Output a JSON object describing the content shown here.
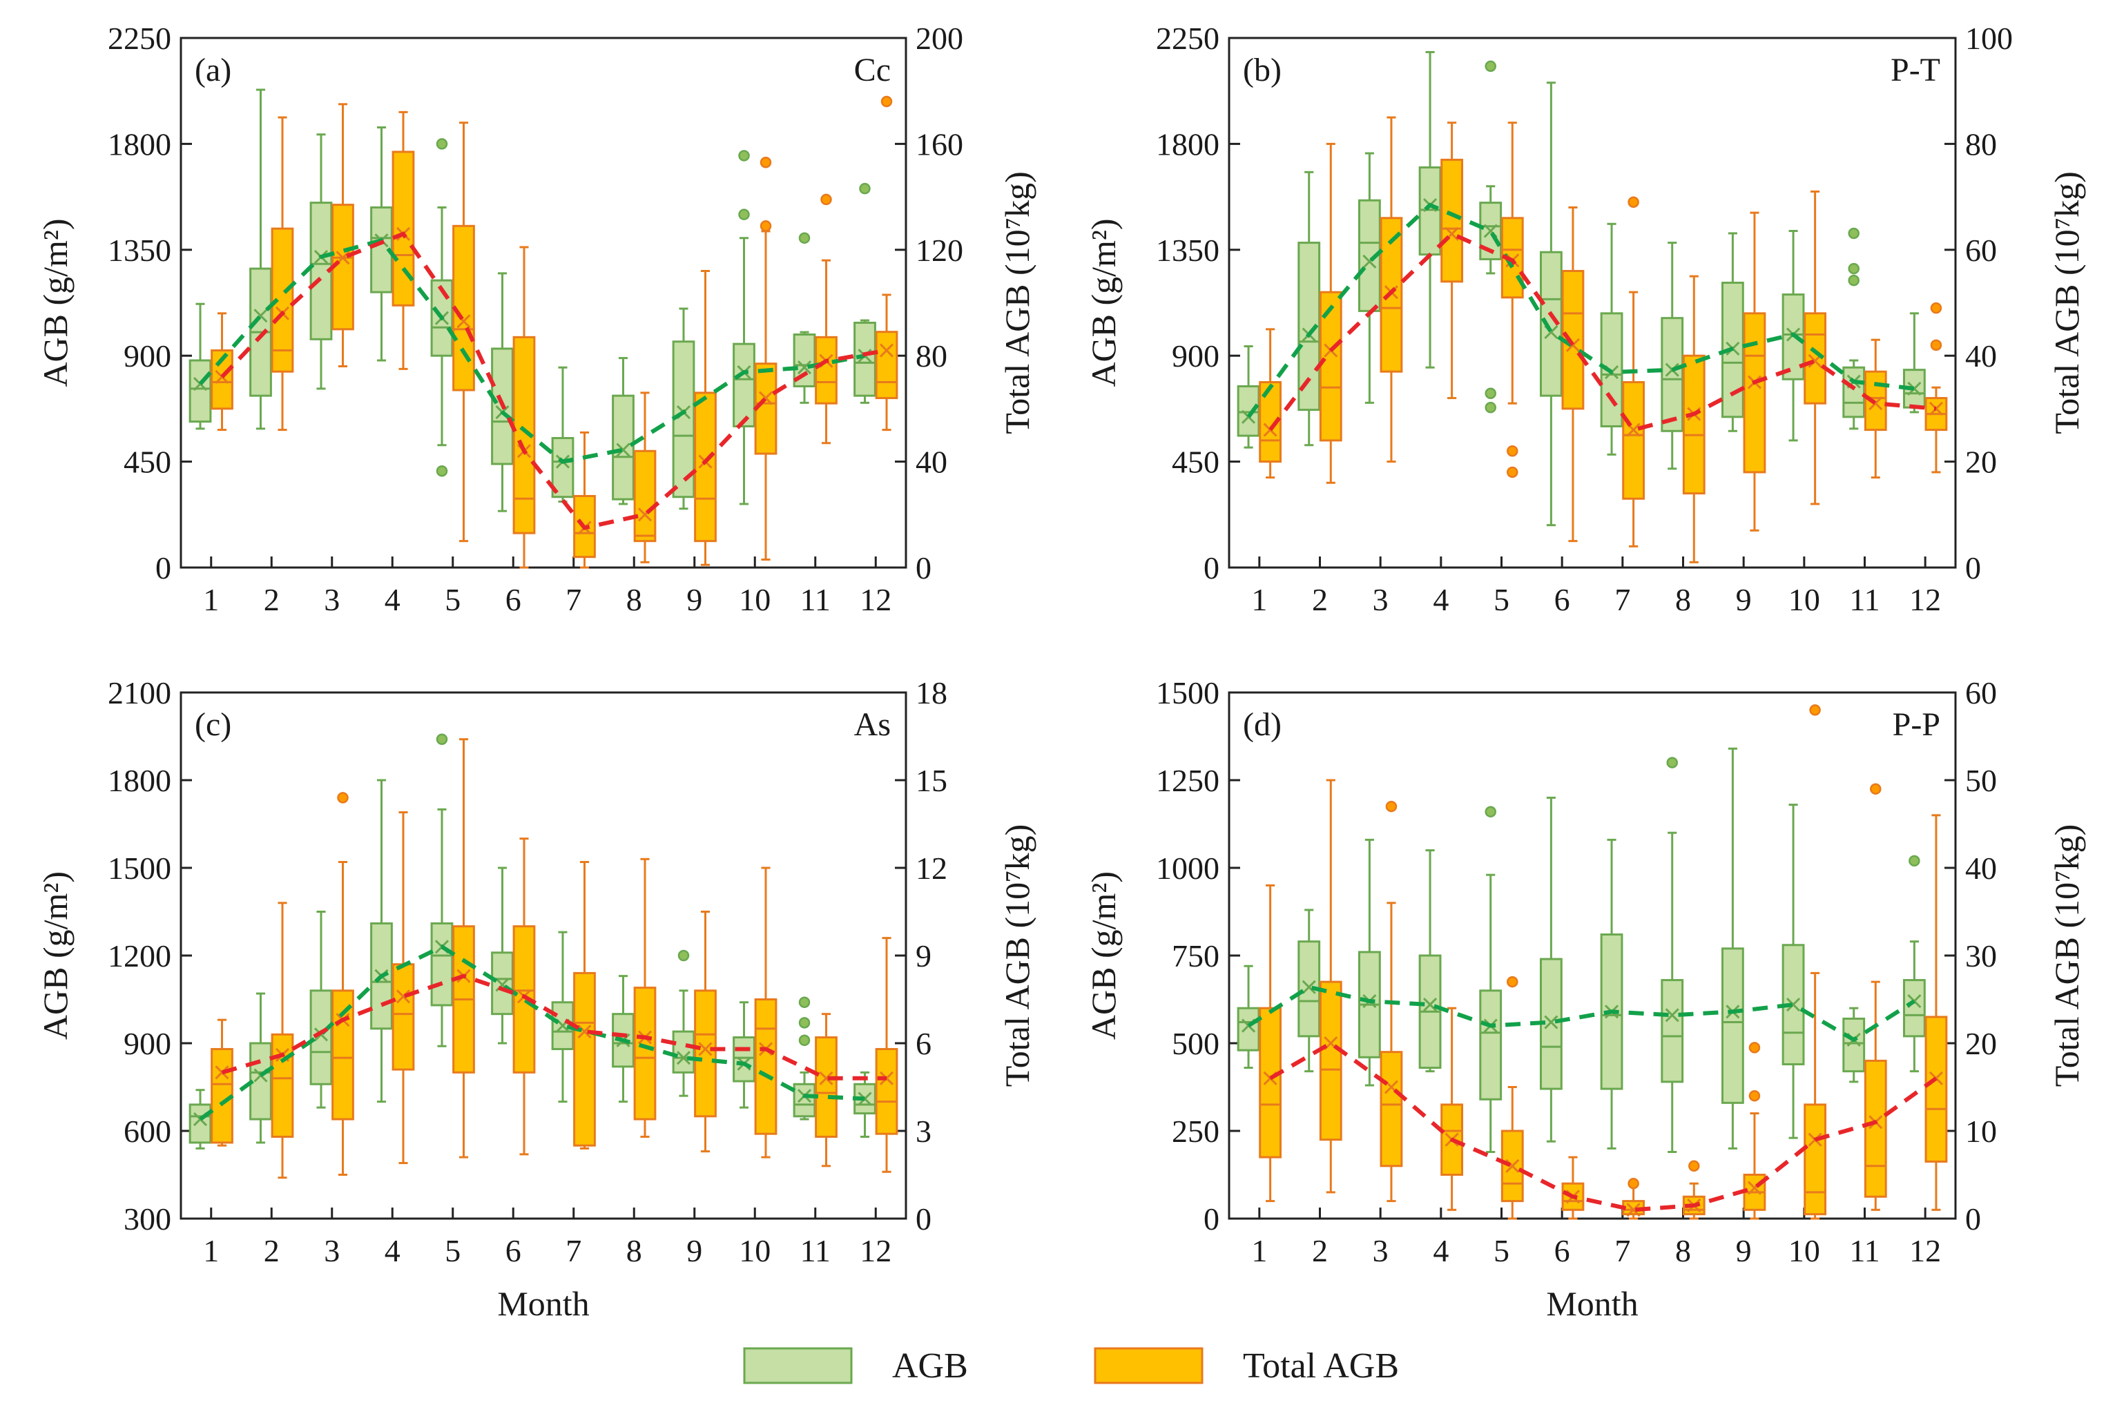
{
  "colors": {
    "agb_fill": "#c5dfa5",
    "agb_edge": "#6aa84f",
    "agb_trend": "#12a14a",
    "total_fill": "#ffc000",
    "total_edge": "#e87a1c",
    "total_trend": "#e8262a",
    "outlier_agb": "#8fbf5a",
    "outlier_total": "#ff9900"
  },
  "legend": {
    "agb_label": "AGB",
    "total_label": "Total AGB"
  },
  "chart_data": [
    {
      "type": "box",
      "panel_label": "(a)",
      "site": "Cc",
      "categories": [
        "1",
        "2",
        "3",
        "4",
        "5",
        "6",
        "7",
        "8",
        "9",
        "10",
        "11",
        "12"
      ],
      "xlabel": "",
      "ylabel_left": "AGB (g/m²)",
      "ylabel_right": "Total AGB (10⁷kg)",
      "ylim_left": [
        0,
        2250
      ],
      "yticks_left": [
        0,
        450,
        900,
        1350,
        1800,
        2250
      ],
      "ylim_right": [
        0,
        200
      ],
      "yticks_right": [
        0,
        40,
        80,
        120,
        160,
        200
      ],
      "agb": {
        "min": [
          590,
          590,
          760,
          880,
          520,
          240,
          280,
          270,
          250,
          270,
          700,
          700
        ],
        "q1": [
          620,
          730,
          970,
          1170,
          900,
          440,
          300,
          290,
          300,
          600,
          770,
          730
        ],
        "median": [
          760,
          1000,
          1290,
          1400,
          1020,
          620,
          450,
          470,
          560,
          800,
          860,
          870
        ],
        "q3": [
          880,
          1270,
          1550,
          1530,
          1220,
          930,
          550,
          730,
          960,
          950,
          990,
          1040
        ],
        "max": [
          1120,
          2030,
          1840,
          1870,
          1530,
          1250,
          850,
          890,
          1100,
          1400,
          1000,
          1050
        ],
        "mean": [
          780,
          1070,
          1320,
          1390,
          1060,
          660,
          450,
          500,
          660,
          830,
          850,
          900
        ],
        "outliers": [
          [],
          [],
          [],
          [],
          [
            1800,
            410
          ],
          [],
          [],
          [],
          [],
          [
            1750,
            1500
          ],
          [
            1400
          ],
          [
            1610
          ]
        ]
      },
      "total": {
        "min": [
          52,
          52,
          76,
          75,
          10,
          0,
          0,
          2,
          1,
          3,
          47,
          52
        ],
        "q1": [
          60,
          74,
          90,
          99,
          67,
          13,
          4,
          10,
          10,
          43,
          62,
          64
        ],
        "median": [
          70,
          82,
          117,
          118,
          90,
          26,
          13,
          12,
          26,
          62,
          70,
          70
        ],
        "q3": [
          82,
          128,
          137,
          157,
          129,
          87,
          27,
          44,
          66,
          77,
          87,
          89
        ],
        "max": [
          96,
          170,
          175,
          172,
          168,
          121,
          51,
          66,
          112,
          127,
          116,
          103
        ],
        "mean": [
          72,
          96,
          117,
          126,
          93,
          44,
          15,
          20,
          40,
          64,
          78,
          82
        ],
        "outliers": [
          [],
          [],
          [],
          [],
          [],
          [],
          [],
          [],
          [],
          [
            153,
            129
          ],
          [
            139
          ],
          [
            176
          ]
        ]
      }
    },
    {
      "type": "box",
      "panel_label": "(b)",
      "site": "P-T",
      "categories": [
        "1",
        "2",
        "3",
        "4",
        "5",
        "6",
        "7",
        "8",
        "9",
        "10",
        "11",
        "12"
      ],
      "xlabel": "",
      "ylabel_left": "AGB (g/m²)",
      "ylabel_right": "Total AGB (10⁷kg)",
      "ylim_left": [
        0,
        2250
      ],
      "yticks_left": [
        0,
        450,
        900,
        1350,
        1800,
        2250
      ],
      "ylim_right": [
        0,
        100
      ],
      "yticks_right": [
        0,
        20,
        40,
        60,
        80,
        100
      ],
      "agb": {
        "min": [
          510,
          520,
          700,
          850,
          1250,
          180,
          480,
          420,
          580,
          540,
          590,
          660
        ],
        "q1": [
          560,
          670,
          1090,
          1330,
          1310,
          730,
          600,
          580,
          640,
          800,
          640,
          680
        ],
        "median": [
          660,
          960,
          1380,
          1520,
          1450,
          1140,
          820,
          800,
          870,
          990,
          700,
          740
        ],
        "q3": [
          770,
          1380,
          1560,
          1700,
          1550,
          1340,
          1080,
          1060,
          1210,
          1160,
          850,
          840
        ],
        "max": [
          940,
          1680,
          1760,
          2190,
          1620,
          2060,
          1460,
          1380,
          1420,
          1430,
          880,
          1080
        ],
        "mean": [
          640,
          990,
          1300,
          1540,
          1430,
          1000,
          830,
          840,
          930,
          990,
          790,
          760
        ],
        "outliers": [
          [],
          [],
          [],
          [],
          [
            2130,
            740,
            680
          ],
          [],
          [],
          [],
          [],
          [],
          [
            1420,
            1270,
            1220
          ],
          []
        ]
      },
      "total": {
        "min": [
          17,
          16,
          20,
          32,
          31,
          5,
          4,
          1,
          7,
          12,
          17,
          18
        ],
        "q1": [
          20,
          24,
          37,
          54,
          51,
          30,
          13,
          14,
          18,
          31,
          26,
          26
        ],
        "median": [
          24,
          34,
          49,
          64,
          60,
          48,
          25,
          25,
          40,
          44,
          32,
          29
        ],
        "q3": [
          35,
          52,
          66,
          77,
          66,
          56,
          35,
          40,
          48,
          48,
          37,
          32
        ],
        "max": [
          45,
          80,
          85,
          84,
          84,
          68,
          52,
          55,
          67,
          71,
          43,
          34
        ],
        "mean": [
          26,
          41,
          52,
          63,
          58,
          42,
          26,
          29,
          35,
          39,
          31,
          30
        ],
        "outliers": [
          [],
          [],
          [],
          [],
          [
            22,
            18
          ],
          [],
          [
            69
          ],
          [],
          [],
          [],
          [],
          [
            49,
            42
          ]
        ]
      }
    },
    {
      "type": "box",
      "panel_label": "(c)",
      "site": "As",
      "categories": [
        "1",
        "2",
        "3",
        "4",
        "5",
        "6",
        "7",
        "8",
        "9",
        "10",
        "11",
        "12"
      ],
      "xlabel": "Month",
      "ylabel_left": "AGB (g/m²)",
      "ylabel_right": "Total AGB (10⁷kg)",
      "ylim_left": [
        300,
        2100
      ],
      "yticks_left": [
        300,
        600,
        900,
        1200,
        1500,
        1800,
        2100
      ],
      "ylim_right": [
        0,
        18
      ],
      "yticks_right": [
        0,
        3,
        6,
        9,
        12,
        15,
        18
      ],
      "agb": {
        "min": [
          540,
          560,
          680,
          700,
          890,
          900,
          700,
          700,
          720,
          680,
          640,
          580
        ],
        "q1": [
          560,
          640,
          760,
          950,
          1030,
          1000,
          880,
          820,
          800,
          770,
          650,
          660
        ],
        "median": [
          650,
          800,
          870,
          1110,
          1200,
          1120,
          940,
          900,
          850,
          850,
          690,
          690
        ],
        "q3": [
          690,
          900,
          1080,
          1310,
          1310,
          1210,
          1040,
          1000,
          940,
          920,
          760,
          760
        ],
        "max": [
          740,
          1070,
          1350,
          1800,
          1700,
          1500,
          1280,
          1130,
          1080,
          1040,
          800,
          800
        ],
        "mean": [
          640,
          790,
          930,
          1130,
          1230,
          1100,
          960,
          910,
          850,
          830,
          720,
          710
        ],
        "outliers": [
          [],
          [],
          [],
          [],
          [
            1940
          ],
          [],
          [],
          [],
          [
            1200
          ],
          [],
          [
            1040,
            970,
            910
          ],
          []
        ]
      },
      "total": {
        "min": [
          2.5,
          1.4,
          1.5,
          1.9,
          2.1,
          2.2,
          2.4,
          2.8,
          2.3,
          2.1,
          1.8,
          1.6
        ],
        "q1": [
          2.6,
          2.8,
          3.4,
          5.1,
          5.0,
          5.0,
          2.5,
          3.4,
          3.5,
          2.9,
          2.8,
          2.9
        ],
        "median": [
          4.6,
          4.8,
          5.5,
          7.0,
          7.5,
          7.8,
          6.7,
          5.5,
          6.3,
          6.5,
          4.3,
          4.0
        ],
        "q3": [
          5.8,
          6.3,
          7.8,
          8.7,
          10.0,
          10.0,
          8.4,
          7.9,
          7.8,
          7.5,
          6.2,
          5.8
        ],
        "max": [
          6.8,
          10.8,
          12.2,
          13.9,
          16.4,
          13.0,
          12.2,
          12.3,
          10.5,
          12.0,
          7.0,
          9.6
        ],
        "mean": [
          5.0,
          5.6,
          6.8,
          7.6,
          8.3,
          7.6,
          6.4,
          6.2,
          5.8,
          5.8,
          4.8,
          4.8
        ],
        "outliers": [
          [],
          [],
          [
            14.4
          ],
          [],
          [],
          [],
          [],
          [],
          [],
          [],
          [],
          []
        ]
      }
    },
    {
      "type": "box",
      "panel_label": "(d)",
      "site": "P-P",
      "categories": [
        "1",
        "2",
        "3",
        "4",
        "5",
        "6",
        "7",
        "8",
        "9",
        "10",
        "11",
        "12"
      ],
      "xlabel": "Month",
      "ylabel_left": "AGB (g/m²)",
      "ylabel_right": "Total AGB (10⁷kg)",
      "ylim_left": [
        0,
        1500
      ],
      "yticks_left": [
        0,
        250,
        500,
        750,
        1000,
        1250,
        1500
      ],
      "ylim_right": [
        0,
        60
      ],
      "yticks_right": [
        0,
        10,
        20,
        30,
        40,
        50,
        60
      ],
      "agb": {
        "min": [
          430,
          420,
          380,
          420,
          190,
          220,
          200,
          190,
          200,
          230,
          390,
          420
        ],
        "q1": [
          480,
          520,
          460,
          430,
          340,
          370,
          370,
          390,
          330,
          440,
          420,
          520
        ],
        "median": [
          560,
          620,
          610,
          590,
          530,
          490,
          580,
          520,
          560,
          530,
          500,
          580
        ],
        "q3": [
          600,
          790,
          760,
          750,
          650,
          740,
          810,
          680,
          770,
          780,
          570,
          680
        ],
        "max": [
          720,
          880,
          1080,
          1050,
          980,
          1200,
          1080,
          1100,
          1340,
          1180,
          600,
          790
        ],
        "mean": [
          550,
          660,
          620,
          610,
          550,
          560,
          590,
          580,
          590,
          610,
          510,
          620
        ],
        "outliers": [
          [],
          [],
          [],
          [],
          [
            1160
          ],
          [],
          [],
          [
            1300
          ],
          [],
          [],
          [],
          [
            1020
          ]
        ]
      },
      "total": {
        "min": [
          2,
          3,
          2,
          1,
          0,
          0,
          0,
          0,
          0,
          0,
          1,
          1
        ],
        "q1": [
          7,
          9,
          6,
          5,
          2,
          1,
          0.5,
          0.5,
          1,
          0.5,
          2.5,
          6.5
        ],
        "median": [
          13,
          17,
          13,
          10,
          4,
          2,
          1,
          1,
          3,
          3,
          6,
          12.5
        ],
        "q3": [
          24,
          27,
          19,
          13,
          10,
          4,
          2,
          2.5,
          5,
          13,
          18,
          23
        ],
        "max": [
          38,
          50,
          36,
          24,
          15,
          7,
          4,
          4,
          12,
          28,
          27,
          46
        ],
        "mean": [
          16,
          20,
          15,
          9,
          6,
          2.5,
          1,
          1.5,
          3.5,
          9,
          11,
          16
        ],
        "outliers": [
          [],
          [],
          [
            47
          ],
          [],
          [
            27
          ],
          [],
          [
            4
          ],
          [
            6
          ],
          [
            19.5,
            14
          ],
          [
            58
          ],
          [
            49
          ],
          []
        ]
      }
    }
  ]
}
